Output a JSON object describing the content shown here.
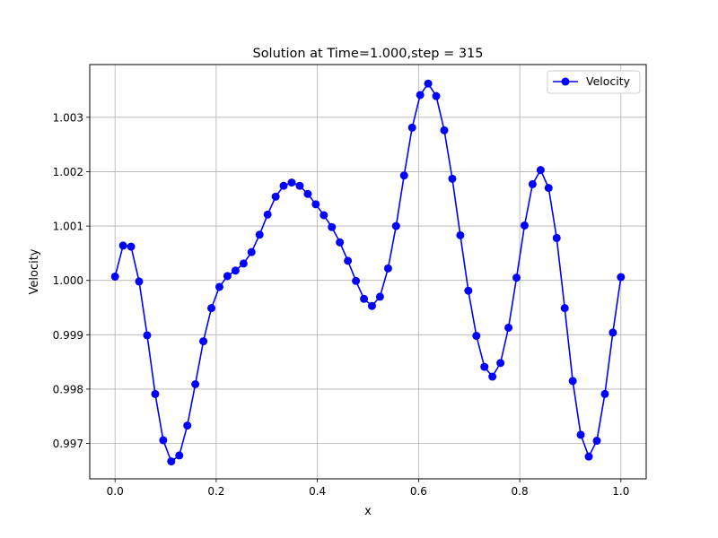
{
  "chart_data": {
    "type": "line",
    "title": "Solution at Time=1.000,step = 315",
    "xlabel": "x",
    "ylabel": "Velocity",
    "xlim": [
      -0.05,
      1.05
    ],
    "ylim": [
      0.99635,
      1.00397
    ],
    "grid": true,
    "legend_position": "upper right",
    "x_ticks": [
      0.0,
      0.2,
      0.4,
      0.6,
      0.8,
      1.0
    ],
    "x_tick_labels": [
      "0.0",
      "0.2",
      "0.4",
      "0.6",
      "0.8",
      "1.0"
    ],
    "y_ticks": [
      0.997,
      0.998,
      0.999,
      1.0,
      1.001,
      1.002,
      1.003
    ],
    "y_tick_labels": [
      "0.997",
      "0.998",
      "0.999",
      "1.000",
      "1.001",
      "1.002",
      "1.003"
    ],
    "series": [
      {
        "name": "Velocity",
        "color": "#0000ff",
        "marker": "circle",
        "x": [
          0.0,
          0.0159,
          0.0317,
          0.0476,
          0.0635,
          0.0794,
          0.0952,
          0.1111,
          0.127,
          0.1429,
          0.1587,
          0.1746,
          0.1905,
          0.2063,
          0.2222,
          0.2381,
          0.254,
          0.2698,
          0.2857,
          0.3016,
          0.3175,
          0.3333,
          0.3492,
          0.3651,
          0.381,
          0.3968,
          0.4127,
          0.4286,
          0.4444,
          0.4603,
          0.4762,
          0.4921,
          0.5079,
          0.5238,
          0.5397,
          0.5556,
          0.5714,
          0.5873,
          0.6032,
          0.619,
          0.6349,
          0.6508,
          0.6667,
          0.6825,
          0.6984,
          0.7143,
          0.7302,
          0.746,
          0.7619,
          0.7778,
          0.7937,
          0.8095,
          0.8254,
          0.8413,
          0.8571,
          0.873,
          0.8889,
          0.9048,
          0.9206,
          0.9365,
          0.9524,
          0.9683,
          0.9841,
          1.0
        ],
        "values": [
          1.00007,
          1.00064,
          1.00062,
          0.99998,
          0.99899,
          0.99791,
          0.99706,
          0.99667,
          0.99678,
          0.99733,
          0.99809,
          0.99888,
          0.99949,
          0.99988,
          1.00008,
          1.00018,
          1.00031,
          1.00052,
          1.00084,
          1.00121,
          1.00154,
          1.00174,
          1.0018,
          1.00174,
          1.00159,
          1.0014,
          1.0012,
          1.00098,
          1.0007,
          1.00036,
          0.99999,
          0.99966,
          0.99953,
          0.9997,
          1.00022,
          1.001,
          1.00193,
          1.00281,
          1.00341,
          1.00362,
          1.00339,
          1.00276,
          1.00187,
          1.00083,
          0.99981,
          0.99898,
          0.99841,
          0.99823,
          0.99848,
          0.99913,
          1.00005,
          1.00101,
          1.00177,
          1.00203,
          1.0017,
          1.00078,
          0.99949,
          0.99815,
          0.99716,
          0.99676,
          0.99705,
          0.99791,
          0.99904,
          1.00006
        ]
      }
    ]
  }
}
